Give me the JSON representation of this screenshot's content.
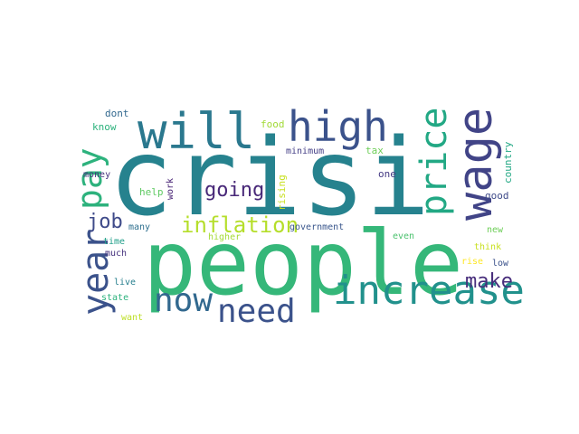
{
  "words": [
    {
      "text": "crisi",
      "color": "#26828e"
    },
    {
      "text": "people",
      "color": "#35b779"
    },
    {
      "text": "will",
      "color": "#2a788e"
    },
    {
      "text": "high",
      "color": "#3b528b"
    },
    {
      "text": "wage",
      "color": "#414487"
    },
    {
      "text": "increase",
      "color": "#21918c"
    },
    {
      "text": "price",
      "color": "#22a884"
    },
    {
      "text": "year",
      "color": "#3b528b"
    },
    {
      "text": "pay",
      "color": "#2db27d"
    },
    {
      "text": "now",
      "color": "#31688e"
    },
    {
      "text": "need",
      "color": "#3b528b"
    },
    {
      "text": "inflation",
      "color": "#b5de2b"
    },
    {
      "text": "going",
      "color": "#482878"
    },
    {
      "text": "make",
      "color": "#472d7b"
    },
    {
      "text": "job",
      "color": "#3e4a89"
    },
    {
      "text": "dont",
      "color": "#31688e"
    },
    {
      "text": "know",
      "color": "#2db27d"
    },
    {
      "text": "food",
      "color": "#a2da37"
    },
    {
      "text": "minimum",
      "color": "#433e85"
    },
    {
      "text": "tax",
      "color": "#6ece58"
    },
    {
      "text": "country",
      "color": "#22a884"
    },
    {
      "text": "one",
      "color": "#443983"
    },
    {
      "text": "help",
      "color": "#5ec962"
    },
    {
      "text": "work",
      "color": "#482475"
    },
    {
      "text": "rising",
      "color": "#c8e020"
    },
    {
      "text": "good",
      "color": "#3e4a89"
    },
    {
      "text": "money",
      "color": "#46327e"
    },
    {
      "text": "many",
      "color": "#2e6f8e"
    },
    {
      "text": "government",
      "color": "#39568c"
    },
    {
      "text": "even",
      "color": "#4ac16d"
    },
    {
      "text": "new",
      "color": "#6ece58"
    },
    {
      "text": "time",
      "color": "#1f9e89"
    },
    {
      "text": "higher",
      "color": "#a5db36"
    },
    {
      "text": "much",
      "color": "#46327e"
    },
    {
      "text": "think",
      "color": "#c8e020"
    },
    {
      "text": "rise",
      "color": "#fde725"
    },
    {
      "text": "low",
      "color": "#3b528b"
    },
    {
      "text": "live",
      "color": "#277f8e"
    },
    {
      "text": "state",
      "color": "#2db27d"
    },
    {
      "text": "want",
      "color": "#bddf26"
    }
  ]
}
